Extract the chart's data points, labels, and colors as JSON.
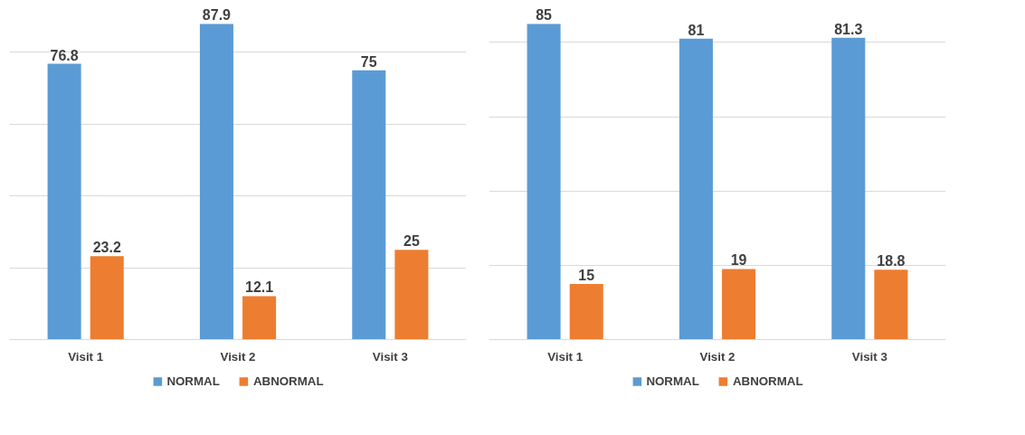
{
  "chart_data": [
    {
      "type": "bar",
      "categories": [
        "Visit 1",
        "Visit 2",
        "Visit 3"
      ],
      "series": [
        {
          "name": "NORMAL",
          "color": "#5b9bd5",
          "values": [
            76.8,
            87.9,
            75
          ]
        },
        {
          "name": "ABNORMAL",
          "color": "#ed7d31",
          "values": [
            23.2,
            12.1,
            25
          ]
        }
      ],
      "tick_labels": "x",
      "grid": "y",
      "legend": "bottom",
      "data_labels": true
    },
    {
      "type": "bar",
      "categories": [
        "Visit 1",
        "Visit 2",
        "Visit 3"
      ],
      "series": [
        {
          "name": "NORMAL",
          "color": "#5b9bd5",
          "values": [
            85,
            81,
            81.3
          ]
        },
        {
          "name": "ABNORMAL",
          "color": "#ed7d31",
          "values": [
            15,
            19,
            18.8
          ]
        }
      ],
      "tick_labels": "x",
      "grid": "y",
      "legend": "bottom",
      "data_labels": true
    }
  ]
}
